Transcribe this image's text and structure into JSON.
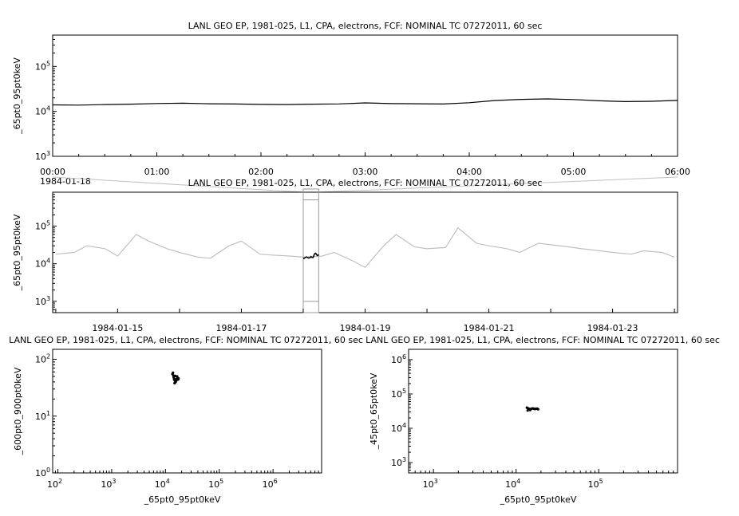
{
  "colors": {
    "line": "#000000",
    "context": "#c0c0c0",
    "background": "#ffffff"
  },
  "chart_data": [
    {
      "id": "timeseries-zoom",
      "type": "line",
      "title": "LANL GEO EP, 1981-025, L1, CPA, electrons, FCF: NOMINAL TC 07272011, 60 sec",
      "ylabel": "_65pt0_95pt0keV",
      "ylim": [
        1000,
        500000
      ],
      "yscale": "log",
      "yticks": [
        {
          "value": 1000,
          "base": "10",
          "exp": "3"
        },
        {
          "value": 10000,
          "base": "10",
          "exp": "4"
        },
        {
          "value": 100000,
          "base": "10",
          "exp": "5"
        }
      ],
      "x_hours": [
        0,
        0.25,
        0.5,
        0.75,
        1,
        1.25,
        1.5,
        1.75,
        2,
        2.25,
        2.5,
        2.75,
        3,
        3.25,
        3.5,
        3.75,
        4,
        4.25,
        4.5,
        4.75,
        5,
        5.25,
        5.5,
        5.75,
        6
      ],
      "y": [
        14000,
        13800,
        14200,
        14500,
        15000,
        15200,
        14800,
        14600,
        14300,
        14200,
        14500,
        14700,
        15500,
        14900,
        14800,
        14600,
        15600,
        17500,
        18500,
        19000,
        18400,
        17200,
        16500,
        16800,
        17600
      ],
      "xticks": [
        "00:00",
        "01:00",
        "02:00",
        "03:00",
        "04:00",
        "05:00",
        "06:00"
      ],
      "start_date": "1984-01-18"
    },
    {
      "id": "timeseries-overview",
      "type": "line",
      "title": "LANL GEO EP, 1981-025, L1, CPA, electrons, FCF: NOMINAL TC 07272011, 60 sec",
      "ylabel": "_65pt0_95pt0keV",
      "ylim": [
        500,
        800000
      ],
      "yscale": "log",
      "yticks": [
        {
          "value": 1000,
          "base": "10",
          "exp": "3"
        },
        {
          "value": 10000,
          "base": "10",
          "exp": "4"
        },
        {
          "value": 100000,
          "base": "10",
          "exp": "5"
        }
      ],
      "x_days": [
        14,
        14.3,
        14.5,
        14.8,
        15,
        15.3,
        15.5,
        15.8,
        16,
        16.3,
        16.5,
        16.8,
        17,
        17.3,
        17.5,
        17.8,
        18,
        18.3,
        18.5,
        18.8,
        19,
        19.3,
        19.5,
        19.8,
        20,
        20.3,
        20.5,
        20.8,
        21,
        21.3,
        21.5,
        21.8,
        22,
        22.3,
        22.5,
        22.8,
        23,
        23.3,
        23.5,
        23.8,
        24
      ],
      "y": [
        18000,
        20000,
        30000,
        25000,
        16000,
        60000,
        40000,
        25000,
        20000,
        15000,
        14000,
        30000,
        40000,
        18000,
        17000,
        16000,
        15000,
        16000,
        20000,
        12000,
        8000,
        30000,
        60000,
        28000,
        25000,
        27000,
        90000,
        35000,
        30000,
        25000,
        20000,
        35000,
        32000,
        28000,
        25000,
        22000,
        20000,
        18000,
        22000,
        20000,
        15000
      ],
      "highlight_range_days": [
        18,
        18.25
      ],
      "xticks": [
        "1984-01-15",
        "1984-01-17",
        "1984-01-19",
        "1984-01-21",
        "1984-01-23"
      ]
    },
    {
      "id": "scatter-left",
      "type": "scatter",
      "title": "LANL GEO EP, 1981-025, L1, CPA, electrons, FCF: NOMINAL TC 07272011, 60 sec",
      "xlabel": "_65pt0_95pt0keV",
      "ylabel": "_600pt0_900pt0keV",
      "xlim": [
        80,
        8000000
      ],
      "ylim": [
        1,
        150
      ],
      "xscale": "log",
      "yscale": "log",
      "xticks": [
        {
          "value": 100,
          "base": "10",
          "exp": "2"
        },
        {
          "value": 1000,
          "base": "10",
          "exp": "3"
        },
        {
          "value": 10000,
          "base": "10",
          "exp": "4"
        },
        {
          "value": 100000,
          "base": "10",
          "exp": "5"
        },
        {
          "value": 1000000,
          "base": "10",
          "exp": "6"
        }
      ],
      "yticks": [
        {
          "value": 1,
          "base": "10",
          "exp": "0"
        },
        {
          "value": 10,
          "base": "10",
          "exp": "1"
        },
        {
          "value": 100,
          "base": "10",
          "exp": "2"
        }
      ],
      "x": [
        13500,
        14200,
        15000,
        15800,
        16500,
        17200,
        14000,
        15500,
        16800,
        14800,
        13800,
        16000,
        17500,
        15200,
        14500
      ],
      "y": [
        55,
        48,
        42,
        45,
        50,
        44,
        52,
        40,
        47,
        38,
        58,
        43,
        46,
        51,
        44
      ]
    },
    {
      "id": "scatter-right",
      "type": "scatter",
      "title": "LANL GEO EP, 1981-025, L1, CPA, electrons, FCF: NOMINAL TC 07272011, 60 sec",
      "xlabel": "_65pt0_95pt0keV",
      "ylabel": "_45pt0_65pt0keV",
      "xlim": [
        500,
        900000
      ],
      "ylim": [
        500,
        2000000
      ],
      "xscale": "log",
      "yscale": "log",
      "xticks": [
        {
          "value": 1000,
          "base": "10",
          "exp": "3"
        },
        {
          "value": 10000,
          "base": "10",
          "exp": "4"
        },
        {
          "value": 100000,
          "base": "10",
          "exp": "5"
        }
      ],
      "yticks": [
        {
          "value": 1000,
          "base": "10",
          "exp": "3"
        },
        {
          "value": 10000,
          "base": "10",
          "exp": "4"
        },
        {
          "value": 100000,
          "base": "10",
          "exp": "5"
        },
        {
          "value": 1000000,
          "base": "10",
          "exp": "6"
        }
      ],
      "x": [
        13500,
        14000,
        14500,
        15000,
        15500,
        16000,
        16500,
        17000,
        17500,
        18000,
        18500,
        13800,
        14800
      ],
      "y": [
        40000,
        38000,
        37000,
        36000,
        37500,
        38000,
        37000,
        36500,
        37000,
        37500,
        36000,
        33000,
        34000
      ]
    }
  ]
}
